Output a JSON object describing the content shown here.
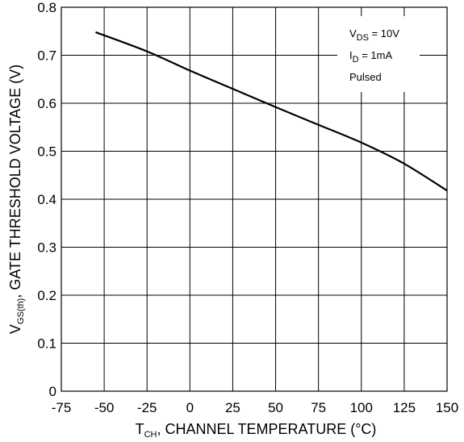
{
  "chart_data": {
    "type": "line",
    "title": "",
    "xlabel": {
      "main": "T",
      "sub": "CH",
      "rest": ", CHANNEL TEMPERATURE (°C)"
    },
    "ylabel": {
      "main": "V",
      "sub": "GS(th)",
      "rest": ", GATE THRESHOLD VOLTAGE (V)"
    },
    "xlim": [
      -75,
      150
    ],
    "ylim": [
      0,
      0.8
    ],
    "xticks": [
      "-75",
      "-50",
      "-25",
      "0",
      "25",
      "50",
      "75",
      "100",
      "125",
      "150"
    ],
    "xtick_values": [
      -75,
      -50,
      -25,
      0,
      25,
      50,
      75,
      100,
      125,
      150
    ],
    "yticks": [
      "0",
      "0.1",
      "0.2",
      "0.3",
      "0.4",
      "0.5",
      "0.6",
      "0.7",
      "0.8"
    ],
    "ytick_values": [
      0,
      0.1,
      0.2,
      0.3,
      0.4,
      0.5,
      0.6,
      0.7,
      0.8
    ],
    "grid": true,
    "series": [
      {
        "x": [
          -55,
          -25,
          0,
          25,
          50,
          75,
          100,
          125,
          150
        ],
        "y": [
          0.748,
          0.708,
          0.668,
          0.63,
          0.592,
          0.555,
          0.518,
          0.474,
          0.418
        ]
      }
    ],
    "annotations": [
      {
        "main": "V",
        "sub": "DS",
        "rest": " = 10V"
      },
      {
        "main": "I",
        "sub": "D",
        "rest": " = 1mA"
      },
      {
        "main": "Pulsed",
        "sub": "",
        "rest": ""
      }
    ]
  }
}
